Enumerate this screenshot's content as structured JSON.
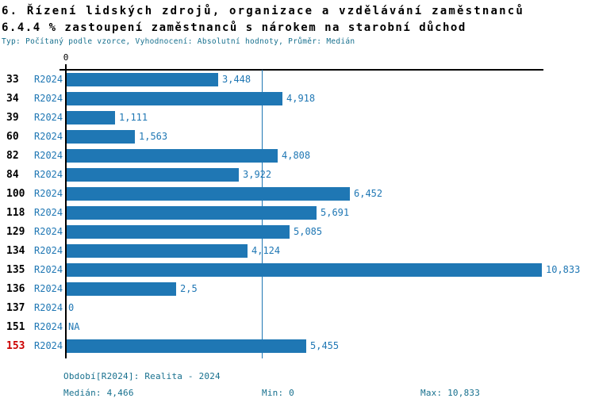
{
  "header": {
    "title": "6. Řízení lidských zdrojů, organizace a vzdělávání zaměstnanců",
    "subtitle": "6.4.4 % zastoupení zaměstnanců s nárokem na starobní důchod",
    "meta": "Typ: Počítaný podle vzorce, Vyhodnocení: Absolutní hodnoty, Průměr: Medián"
  },
  "chart_data": {
    "type": "bar",
    "orientation": "horizontal",
    "title": "6.4.4 % zastoupení zaměstnanců s nárokem na starobní důchod",
    "series_label": "R2024",
    "x_axis": {
      "min": 0,
      "max": 10833,
      "tick_labels": [
        "0"
      ]
    },
    "grid": false,
    "legend_position": "none",
    "categories": [
      "33",
      "34",
      "39",
      "60",
      "82",
      "84",
      "100",
      "118",
      "129",
      "134",
      "135",
      "136",
      "137",
      "151",
      "153"
    ],
    "rows": [
      {
        "org": "33",
        "period": "R2024",
        "value": 3448,
        "value_label": "3,448",
        "highlight": false
      },
      {
        "org": "34",
        "period": "R2024",
        "value": 4918,
        "value_label": "4,918",
        "highlight": false
      },
      {
        "org": "39",
        "period": "R2024",
        "value": 1111,
        "value_label": "1,111",
        "highlight": false
      },
      {
        "org": "60",
        "period": "R2024",
        "value": 1563,
        "value_label": "1,563",
        "highlight": false
      },
      {
        "org": "82",
        "period": "R2024",
        "value": 4808,
        "value_label": "4,808",
        "highlight": false
      },
      {
        "org": "84",
        "period": "R2024",
        "value": 3922,
        "value_label": "3,922",
        "highlight": false
      },
      {
        "org": "100",
        "period": "R2024",
        "value": 6452,
        "value_label": "6,452",
        "highlight": false
      },
      {
        "org": "118",
        "period": "R2024",
        "value": 5691,
        "value_label": "5,691",
        "highlight": false
      },
      {
        "org": "129",
        "period": "R2024",
        "value": 5085,
        "value_label": "5,085",
        "highlight": false
      },
      {
        "org": "134",
        "period": "R2024",
        "value": 4124,
        "value_label": "4,124",
        "highlight": false
      },
      {
        "org": "135",
        "period": "R2024",
        "value": 10833,
        "value_label": "10,833",
        "highlight": false
      },
      {
        "org": "136",
        "period": "R2024",
        "value": 2500,
        "value_label": "2,5",
        "highlight": false
      },
      {
        "org": "137",
        "period": "R2024",
        "value": 0,
        "value_label": "0",
        "highlight": false
      },
      {
        "org": "151",
        "period": "R2024",
        "value": null,
        "value_label": "NA",
        "highlight": false
      },
      {
        "org": "153",
        "period": "R2024",
        "value": 5455,
        "value_label": "5,455",
        "highlight": true
      }
    ],
    "median_value": 4466
  },
  "footer": {
    "period_line": "Období[R2024]: Realita - 2024",
    "median": "Medián: 4,466",
    "min": "Min: 0",
    "max": "Max: 10,833"
  },
  "colors": {
    "bar": "#1f77b4",
    "blue_text": "#1f77b4",
    "meta_text": "#17708e",
    "highlight": "#cc0000",
    "axis": "#000000"
  }
}
